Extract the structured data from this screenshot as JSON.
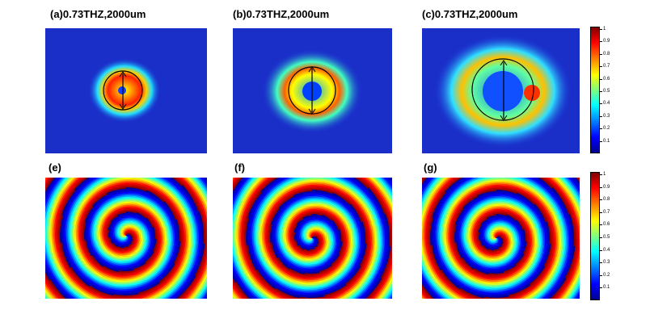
{
  "panels": [
    {
      "label": "(a)0.73THZ,2000um"
    },
    {
      "label": "(b)0.73THZ,2000um"
    },
    {
      "label": "(c)0.73THZ,2000um"
    }
  ],
  "phase_panels": [
    {
      "label": "(e)"
    },
    {
      "label": "(f)"
    },
    {
      "label": "(g)"
    }
  ],
  "colorbars": [
    {
      "range": [
        0,
        1
      ],
      "ticks": [
        0.1,
        0.2,
        0.3,
        0.4,
        0.5,
        0.6,
        0.7,
        0.8,
        0.9,
        1
      ]
    },
    {
      "range": [
        0,
        1
      ],
      "ticks": [
        0.1,
        0.2,
        0.3,
        0.4,
        0.5,
        0.6,
        0.7,
        0.8,
        0.9,
        1
      ]
    }
  ]
}
